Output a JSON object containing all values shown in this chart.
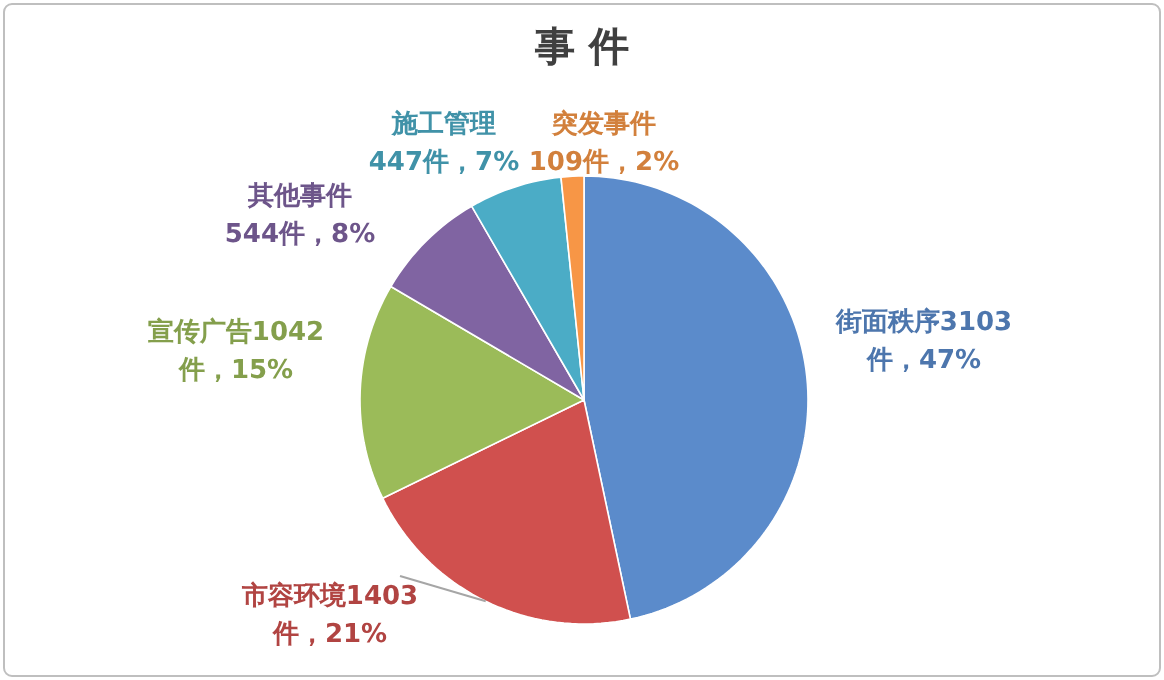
{
  "chart_data": {
    "type": "pie",
    "title": "事 件",
    "categories": [
      "街面秩序",
      "市容环境",
      "宣传广告",
      "其他事件",
      "施工管理",
      "突发事件"
    ],
    "values": [
      3103,
      1403,
      1042,
      544,
      447,
      109
    ],
    "value_labels": [
      "3103\n件，47%",
      "1403\n件，21%",
      "1042\n件，15%",
      "\n544件，8%",
      "\n447件，7%",
      "\n109件，2%"
    ],
    "colors": [
      "#5b8bcb",
      "#d0504e",
      "#9bbb59",
      "#8064a2",
      "#4bacc6",
      "#f79646"
    ]
  }
}
